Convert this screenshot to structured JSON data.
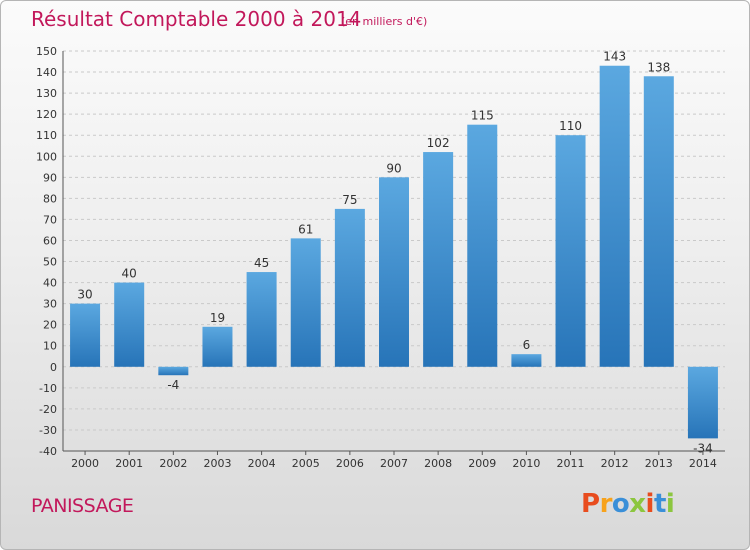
{
  "header": {
    "title": "Résultat Comptable 2000 à 2014",
    "subtitle": "(en milliers d'€)"
  },
  "footer": {
    "town": "PANISSAGE",
    "logo": "Proxiti"
  },
  "colors": {
    "title": "#c2185b",
    "bar_light": "#5ba8e0",
    "bar_dark": "#2774b8",
    "logo": [
      "#e84c1e",
      "#f7a21b",
      "#3a8fd8",
      "#8cc63f",
      "#e84c1e",
      "#3a8fd8",
      "#8cc63f"
    ]
  },
  "chart_data": {
    "type": "bar",
    "title": "Résultat Comptable 2000 à 2014",
    "categories": [
      "2000",
      "2001",
      "2002",
      "2003",
      "2004",
      "2005",
      "2006",
      "2007",
      "2008",
      "2009",
      "2010",
      "2011",
      "2012",
      "2013",
      "2014"
    ],
    "values": [
      30,
      40,
      -4,
      19,
      45,
      61,
      75,
      90,
      102,
      115,
      6,
      110,
      143,
      138,
      -34
    ],
    "ylim": [
      -40,
      150
    ],
    "yticks": [
      -40,
      -30,
      -20,
      -10,
      0,
      10,
      20,
      30,
      40,
      50,
      60,
      70,
      80,
      90,
      100,
      110,
      120,
      130,
      140,
      150
    ],
    "grid": true
  }
}
